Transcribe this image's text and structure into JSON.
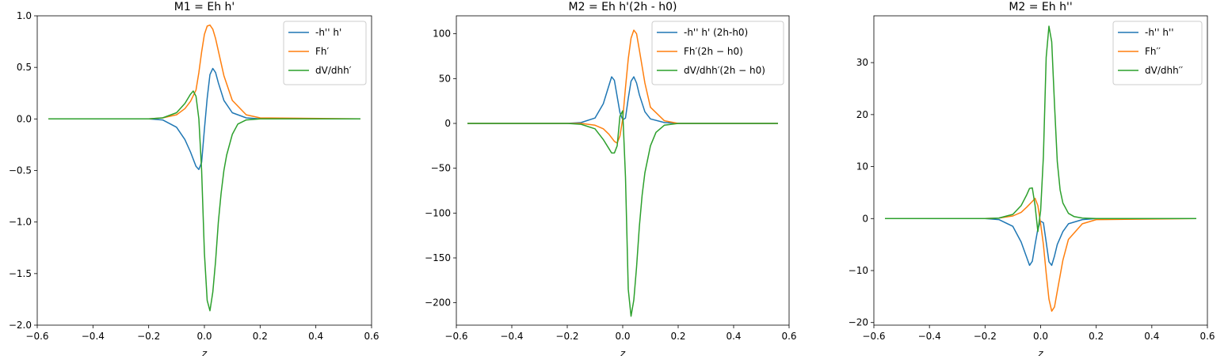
{
  "chart_data": [
    {
      "type": "line",
      "title": "M1 = Eh h'",
      "xlabel": "z",
      "ylabel": "",
      "xlim": [
        -0.6,
        0.6
      ],
      "ylim": [
        -2.0,
        1.0
      ],
      "xticks": [
        -0.6,
        -0.4,
        -0.2,
        0.0,
        0.2,
        0.4,
        0.6
      ],
      "xtick_labels": [
        "−0.6",
        "−0.4",
        "−0.2",
        "0.0",
        "0.2",
        "0.4",
        "0.6"
      ],
      "yticks": [
        -2.0,
        -1.5,
        -1.0,
        -0.5,
        0.0,
        0.5,
        1.0
      ],
      "ytick_labels": [
        "−2.0",
        "−1.5",
        "−1.0",
        "−0.5",
        "0.0",
        "0.5",
        "1.0"
      ],
      "legend_position": "top-right",
      "series": [
        {
          "name": "-h'' h'",
          "color": "#1f77b4",
          "x": [
            -0.56,
            -0.2,
            -0.15,
            -0.1,
            -0.07,
            -0.05,
            -0.03,
            -0.02,
            -0.01,
            0.0,
            0.01,
            0.02,
            0.03,
            0.04,
            0.05,
            0.07,
            0.1,
            0.15,
            0.2,
            0.56
          ],
          "y": [
            0.0,
            0.0,
            -0.01,
            -0.08,
            -0.2,
            -0.32,
            -0.46,
            -0.49,
            -0.42,
            -0.1,
            0.2,
            0.43,
            0.49,
            0.45,
            0.35,
            0.18,
            0.06,
            0.01,
            0.0,
            0.0
          ]
        },
        {
          "name": "Fh′",
          "color": "#ff7f0e",
          "x": [
            -0.56,
            -0.2,
            -0.15,
            -0.1,
            -0.07,
            -0.05,
            -0.03,
            -0.02,
            -0.01,
            0.0,
            0.01,
            0.02,
            0.03,
            0.04,
            0.05,
            0.07,
            0.1,
            0.15,
            0.2,
            0.56
          ],
          "y": [
            0.0,
            0.0,
            0.01,
            0.04,
            0.1,
            0.17,
            0.28,
            0.45,
            0.65,
            0.82,
            0.9,
            0.91,
            0.87,
            0.78,
            0.66,
            0.42,
            0.18,
            0.04,
            0.01,
            0.0
          ]
        },
        {
          "name": "dV/dhh′",
          "color": "#2ca02c",
          "x": [
            -0.56,
            -0.2,
            -0.15,
            -0.1,
            -0.07,
            -0.05,
            -0.04,
            -0.03,
            -0.02,
            -0.01,
            0.0,
            0.01,
            0.02,
            0.03,
            0.04,
            0.05,
            0.06,
            0.07,
            0.08,
            0.1,
            0.12,
            0.15,
            0.2,
            0.56
          ],
          "y": [
            0.0,
            0.0,
            0.01,
            0.06,
            0.15,
            0.24,
            0.27,
            0.22,
            0.0,
            -0.5,
            -1.3,
            -1.76,
            -1.86,
            -1.68,
            -1.38,
            -1.0,
            -0.72,
            -0.5,
            -0.35,
            -0.15,
            -0.05,
            -0.01,
            0.0,
            0.0
          ]
        }
      ]
    },
    {
      "type": "line",
      "title": "M2 = Eh h'(2h - h0)",
      "xlabel": "z",
      "ylabel": "",
      "xlim": [
        -0.6,
        0.6
      ],
      "ylim": [
        -225,
        120
      ],
      "xticks": [
        -0.6,
        -0.4,
        -0.2,
        0.0,
        0.2,
        0.4,
        0.6
      ],
      "xtick_labels": [
        "−0.6",
        "−0.4",
        "−0.2",
        "0.0",
        "0.2",
        "0.4",
        "0.6"
      ],
      "yticks": [
        -200,
        -150,
        -100,
        -50,
        0,
        50,
        100
      ],
      "ytick_labels": [
        "−200",
        "−150",
        "−100",
        "−50",
        "0",
        "50",
        "100"
      ],
      "legend_position": "top-right",
      "series": [
        {
          "name": "-h'' h' (2h-h0)",
          "color": "#1f77b4",
          "x": [
            -0.56,
            -0.2,
            -0.15,
            -0.1,
            -0.07,
            -0.05,
            -0.04,
            -0.03,
            -0.02,
            -0.01,
            0.0,
            0.01,
            0.02,
            0.03,
            0.04,
            0.05,
            0.06,
            0.08,
            0.1,
            0.15,
            0.2,
            0.56
          ],
          "y": [
            0,
            0,
            1,
            6,
            22,
            42,
            52,
            48,
            30,
            12,
            4,
            6,
            28,
            47,
            52,
            45,
            32,
            13,
            5,
            1,
            0,
            0
          ]
        },
        {
          "name": "Fh′(2h − h0)",
          "color": "#ff7f0e",
          "x": [
            -0.56,
            -0.2,
            -0.15,
            -0.1,
            -0.07,
            -0.05,
            -0.03,
            -0.02,
            -0.01,
            0.0,
            0.01,
            0.02,
            0.03,
            0.04,
            0.05,
            0.06,
            0.08,
            0.1,
            0.15,
            0.2,
            0.56
          ],
          "y": [
            0,
            0,
            0,
            -2,
            -6,
            -12,
            -20,
            -22,
            -14,
            5,
            40,
            72,
            95,
            104,
            100,
            82,
            45,
            18,
            3,
            0,
            0
          ]
        },
        {
          "name": "dV/dhh′(2h − h0)",
          "color": "#2ca02c",
          "x": [
            -0.56,
            -0.2,
            -0.15,
            -0.1,
            -0.07,
            -0.05,
            -0.04,
            -0.03,
            -0.02,
            -0.01,
            0.0,
            0.01,
            0.02,
            0.03,
            0.04,
            0.05,
            0.06,
            0.07,
            0.08,
            0.1,
            0.12,
            0.15,
            0.2,
            0.56
          ],
          "y": [
            0,
            0,
            -1,
            -6,
            -18,
            -28,
            -33,
            -33,
            -25,
            8,
            14,
            -60,
            -185,
            -215,
            -197,
            -160,
            -115,
            -80,
            -55,
            -25,
            -10,
            -2,
            0,
            0
          ]
        }
      ]
    },
    {
      "type": "line",
      "title": "M2 = Eh h''",
      "xlabel": "z",
      "ylabel": "",
      "xlim": [
        -0.6,
        0.6
      ],
      "ylim": [
        -20.5,
        39
      ],
      "xticks": [
        -0.6,
        -0.4,
        -0.2,
        0.0,
        0.2,
        0.4,
        0.6
      ],
      "xtick_labels": [
        "−0.6",
        "−0.4",
        "−0.2",
        "0.0",
        "0.2",
        "0.4",
        "0.6"
      ],
      "yticks": [
        -20,
        -10,
        0,
        10,
        20,
        30
      ],
      "ytick_labels": [
        "−20",
        "−10",
        "0",
        "10",
        "20",
        "30"
      ],
      "legend_position": "top-right",
      "series": [
        {
          "name": "-h'' h''",
          "color": "#1f77b4",
          "x": [
            -0.56,
            -0.2,
            -0.15,
            -0.1,
            -0.07,
            -0.05,
            -0.04,
            -0.03,
            -0.02,
            -0.01,
            0.0,
            0.01,
            0.02,
            0.03,
            0.04,
            0.05,
            0.06,
            0.08,
            0.1,
            0.15,
            0.2,
            0.56
          ],
          "y": [
            0,
            0,
            -0.2,
            -1.5,
            -4.5,
            -7.5,
            -9.0,
            -8.2,
            -5.0,
            -2.0,
            -0.5,
            -0.8,
            -4.5,
            -8.3,
            -9.0,
            -7.2,
            -5.0,
            -2.5,
            -1.0,
            -0.2,
            0,
            0
          ]
        },
        {
          "name": "Fh′′",
          "color": "#ff7f0e",
          "x": [
            -0.56,
            -0.2,
            -0.15,
            -0.1,
            -0.07,
            -0.05,
            -0.03,
            -0.02,
            -0.01,
            0.0,
            0.01,
            0.02,
            0.03,
            0.04,
            0.05,
            0.06,
            0.08,
            0.1,
            0.15,
            0.2,
            0.56
          ],
          "y": [
            0,
            0,
            0.1,
            0.5,
            1.2,
            2.2,
            3.3,
            3.9,
            2.5,
            -1.0,
            -5.0,
            -10.5,
            -15.5,
            -17.8,
            -17.0,
            -14.0,
            -8.0,
            -4.0,
            -1.0,
            -0.2,
            0
          ]
        },
        {
          "name": "dV/dhh′′",
          "color": "#2ca02c",
          "x": [
            -0.56,
            -0.2,
            -0.15,
            -0.1,
            -0.07,
            -0.05,
            -0.04,
            -0.03,
            -0.02,
            -0.01,
            0.0,
            0.01,
            0.02,
            0.03,
            0.04,
            0.05,
            0.06,
            0.07,
            0.08,
            0.1,
            0.12,
            0.15,
            0.2,
            0.56
          ],
          "y": [
            0,
            0,
            0.1,
            0.8,
            2.5,
            4.6,
            5.8,
            5.9,
            2.5,
            -2.5,
            1.5,
            12.0,
            31.0,
            37.0,
            34.0,
            22.0,
            11.0,
            5.5,
            3.0,
            1.0,
            0.4,
            0.1,
            0,
            0
          ]
        }
      ]
    }
  ]
}
